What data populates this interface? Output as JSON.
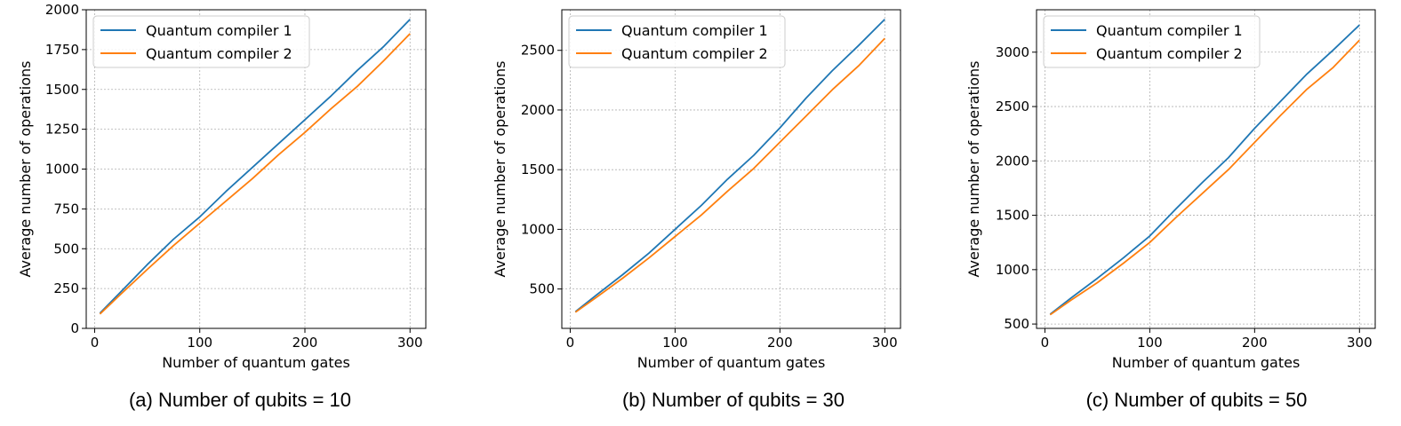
{
  "chart_data": [
    {
      "type": "line",
      "caption": "(a) Number of qubits = 10",
      "xlabel": "Number of quantum gates",
      "ylabel": "Average number of operations",
      "xlim": [
        -8,
        315
      ],
      "ylim": [
        0,
        2000
      ],
      "xticks": [
        0,
        100,
        200,
        300
      ],
      "xtick_labels": [
        "0",
        "100",
        "200",
        "300"
      ],
      "yticks": [
        0,
        250,
        500,
        750,
        1000,
        1250,
        1500,
        1750,
        2000
      ],
      "ytick_labels": [
        "0",
        "250",
        "500",
        "750",
        "1000",
        "1250",
        "1500",
        "1750",
        "2000"
      ],
      "grid": true,
      "legend_position": "top-left",
      "x": [
        5,
        25,
        50,
        75,
        100,
        125,
        150,
        175,
        200,
        225,
        250,
        275,
        300
      ],
      "series": [
        {
          "name": "Quantum compiler 1",
          "color": "#1f77b4",
          "values": [
            95,
            230,
            400,
            560,
            700,
            860,
            1010,
            1160,
            1310,
            1460,
            1620,
            1770,
            1940
          ]
        },
        {
          "name": "Quantum compiler 2",
          "color": "#ff7f0e",
          "values": [
            90,
            215,
            370,
            520,
            660,
            800,
            940,
            1090,
            1230,
            1380,
            1520,
            1680,
            1850
          ]
        }
      ]
    },
    {
      "type": "line",
      "caption": "(b) Number of qubits = 30",
      "xlabel": "Number of quantum gates",
      "ylabel": "Average number of operations",
      "xlim": [
        -8,
        315
      ],
      "ylim": [
        170,
        2840
      ],
      "xticks": [
        0,
        100,
        200,
        300
      ],
      "xtick_labels": [
        "0",
        "100",
        "200",
        "300"
      ],
      "yticks": [
        500,
        1000,
        1500,
        2000,
        2500
      ],
      "ytick_labels": [
        "500",
        "1000",
        "1500",
        "2000",
        "2500"
      ],
      "grid": true,
      "legend_position": "top-left",
      "x": [
        5,
        25,
        50,
        75,
        100,
        125,
        150,
        175,
        200,
        225,
        250,
        275,
        300
      ],
      "series": [
        {
          "name": "Quantum compiler 1",
          "color": "#1f77b4",
          "values": [
            310,
            450,
            620,
            800,
            1000,
            1200,
            1420,
            1620,
            1850,
            2100,
            2330,
            2540,
            2760
          ]
        },
        {
          "name": "Quantum compiler 2",
          "color": "#ff7f0e",
          "values": [
            305,
            430,
            590,
            760,
            940,
            1120,
            1320,
            1510,
            1730,
            1950,
            2170,
            2370,
            2600
          ]
        }
      ]
    },
    {
      "type": "line",
      "caption": "(c) Number of qubits = 50",
      "xlabel": "Number of quantum gates",
      "ylabel": "Average number of operations",
      "xlim": [
        -8,
        315
      ],
      "ylim": [
        460,
        3390
      ],
      "xticks": [
        0,
        100,
        200,
        300
      ],
      "xtick_labels": [
        "0",
        "100",
        "200",
        "300"
      ],
      "yticks": [
        500,
        1000,
        1500,
        2000,
        2500,
        3000
      ],
      "ytick_labels": [
        "500",
        "1000",
        "1500",
        "2000",
        "2500",
        "3000"
      ],
      "grid": true,
      "legend_position": "top-left",
      "x": [
        5,
        25,
        50,
        75,
        100,
        125,
        150,
        175,
        200,
        225,
        250,
        275,
        300
      ],
      "series": [
        {
          "name": "Quantum compiler 1",
          "color": "#1f77b4",
          "values": [
            590,
            740,
            920,
            1110,
            1310,
            1560,
            1800,
            2030,
            2300,
            2550,
            2800,
            3020,
            3250
          ]
        },
        {
          "name": "Quantum compiler 2",
          "color": "#ff7f0e",
          "values": [
            585,
            720,
            880,
            1060,
            1250,
            1480,
            1700,
            1920,
            2170,
            2420,
            2660,
            2860,
            3110
          ]
        }
      ]
    }
  ]
}
